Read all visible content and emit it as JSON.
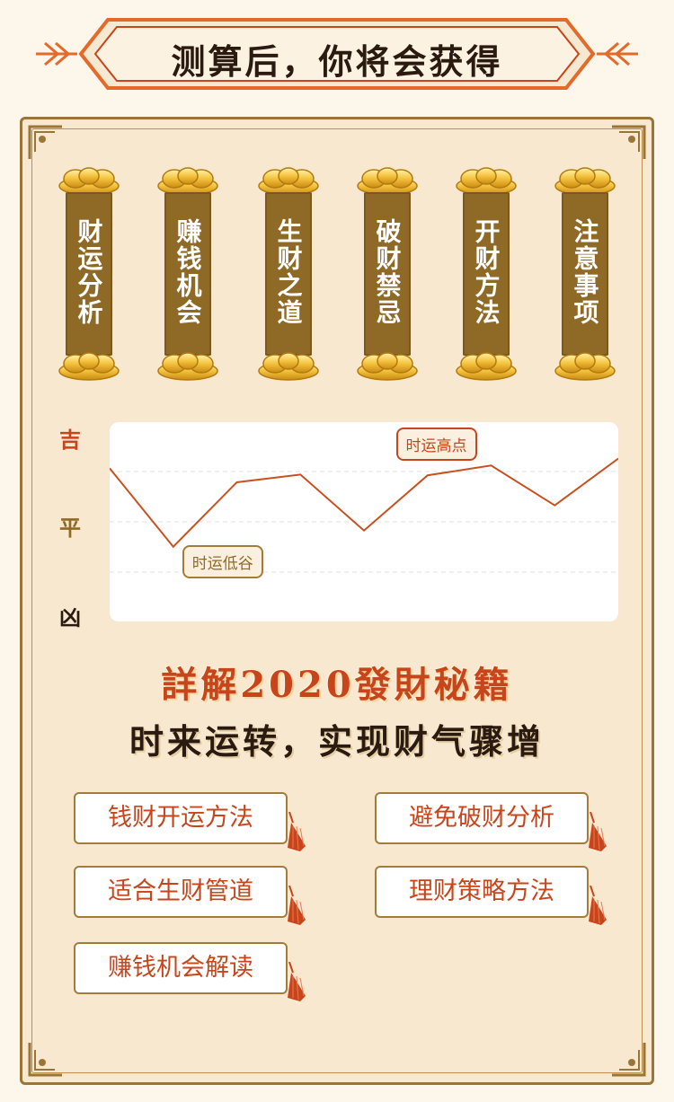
{
  "header": {
    "title": "测算后，你将会获得"
  },
  "scrolls": [
    {
      "label": "财运分析"
    },
    {
      "label": "赚钱机会"
    },
    {
      "label": "生财之道"
    },
    {
      "label": "破财禁忌"
    },
    {
      "label": "开财方法"
    },
    {
      "label": "注意事项"
    }
  ],
  "chart_data": {
    "type": "line",
    "y_levels": [
      "吉",
      "平",
      "凶"
    ],
    "x": [
      1,
      2,
      3,
      4,
      5,
      6,
      7,
      8,
      9
    ],
    "values": [
      0.59,
      -0.53,
      0.39,
      0.5,
      -0.3,
      0.49,
      0.63,
      0.06,
      0.73
    ],
    "ylim": [
      -1.6,
      1.25
    ],
    "grid": true,
    "annotations": [
      {
        "text": "时运高点",
        "point_index": 6
      },
      {
        "text": "时运低谷",
        "point_index": 1
      }
    ],
    "line_color": "#c8501e"
  },
  "headline": {
    "line1": "詳解2020發財秘籍",
    "line2": "时来运转，实现财气骤增"
  },
  "features": {
    "left": [
      "钱财开运方法",
      "适合生财管道",
      "赚钱机会解读"
    ],
    "right": [
      "避免破财分析",
      "理财策略方法"
    ]
  },
  "colors": {
    "accent_red": "#c8451c",
    "gold_brown": "#8f6a27",
    "panel_bg": "#f8e8cf"
  }
}
